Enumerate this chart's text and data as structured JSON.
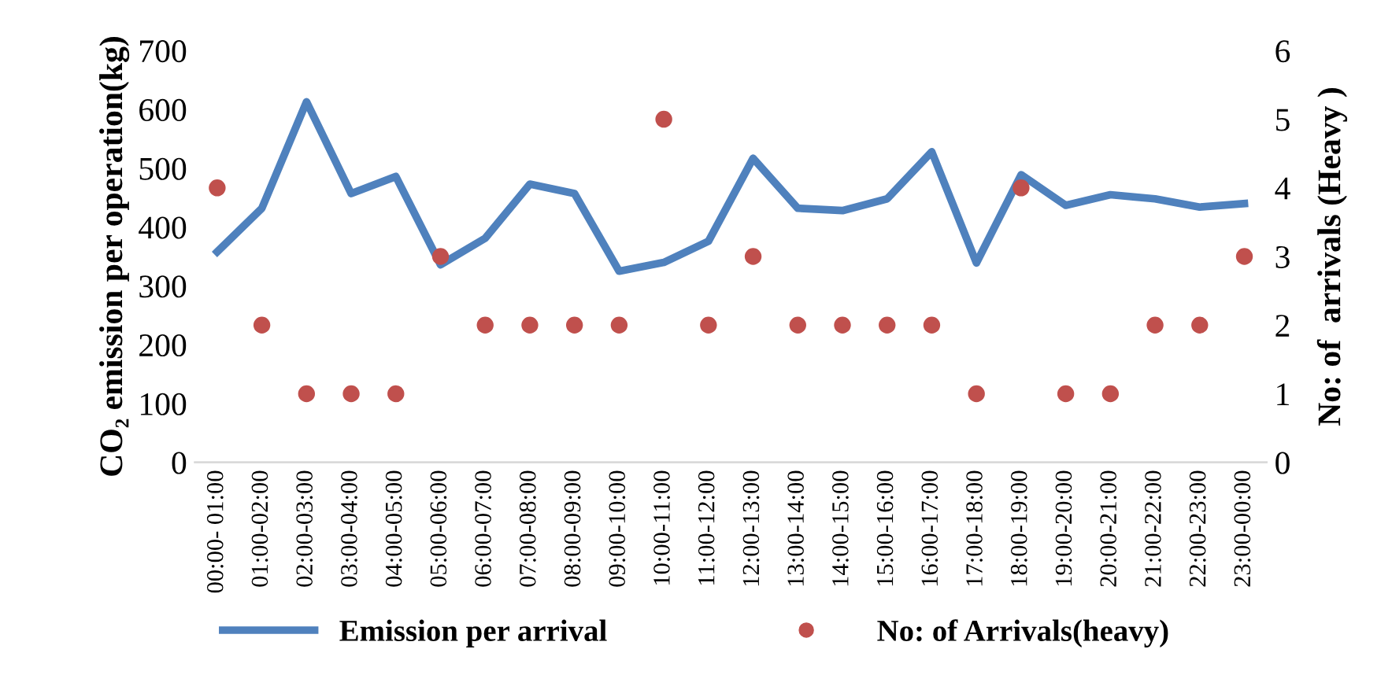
{
  "chart_data": {
    "type": "line",
    "categories": [
      "00:00- 01:00",
      "01:00-02:00",
      "02:00-03:00",
      "03:00-04:00",
      "04:00-05:00",
      "05:00-06:00",
      "06:00-07:00",
      "07:00-08:00",
      "08:00-09:00",
      "09:00-10:00",
      "10:00-11:00",
      "11:00-12:00",
      "12:00-13:00",
      "13:00-14:00",
      "14:00-15:00",
      "15:00-16:00",
      "16:00-17:00",
      "17:00-18:00",
      "18:00-19:00",
      "19:00-20:00",
      "20:00-21:00",
      "21:00-22:00",
      "22:00-23:00",
      "23:00-00:00"
    ],
    "series": [
      {
        "name": "Emission per arrival",
        "marker": "none",
        "color": "#4f81bd",
        "values": [
          358,
          432,
          613,
          457,
          486,
          336,
          381,
          473,
          457,
          325,
          340,
          376,
          517,
          432,
          428,
          448,
          528,
          339,
          489,
          437,
          455,
          448,
          434,
          440
        ]
      },
      {
        "name": "No: of Arrivals(heavy)",
        "type": "scatter",
        "marker": "circle",
        "axis": "y2",
        "color": "#c0504d",
        "values": [
          4,
          2,
          1,
          1,
          1,
          3,
          2,
          2,
          2,
          2,
          5,
          2,
          3,
          2,
          2,
          2,
          2,
          1,
          4,
          1,
          1,
          2,
          2,
          3
        ]
      }
    ],
    "ylabel": "CO₂ emission per operation(kg)",
    "y2label": "No: of  arrivals (Heavy )",
    "ylim": [
      0,
      700
    ],
    "yticks": [
      0,
      100,
      200,
      300,
      400,
      500,
      600,
      700
    ],
    "y2lim": [
      0,
      6
    ],
    "y2ticks": [
      0,
      1,
      2,
      3,
      4,
      5,
      6
    ],
    "grid": false,
    "legend": "bottom",
    "line_style": "solid"
  }
}
